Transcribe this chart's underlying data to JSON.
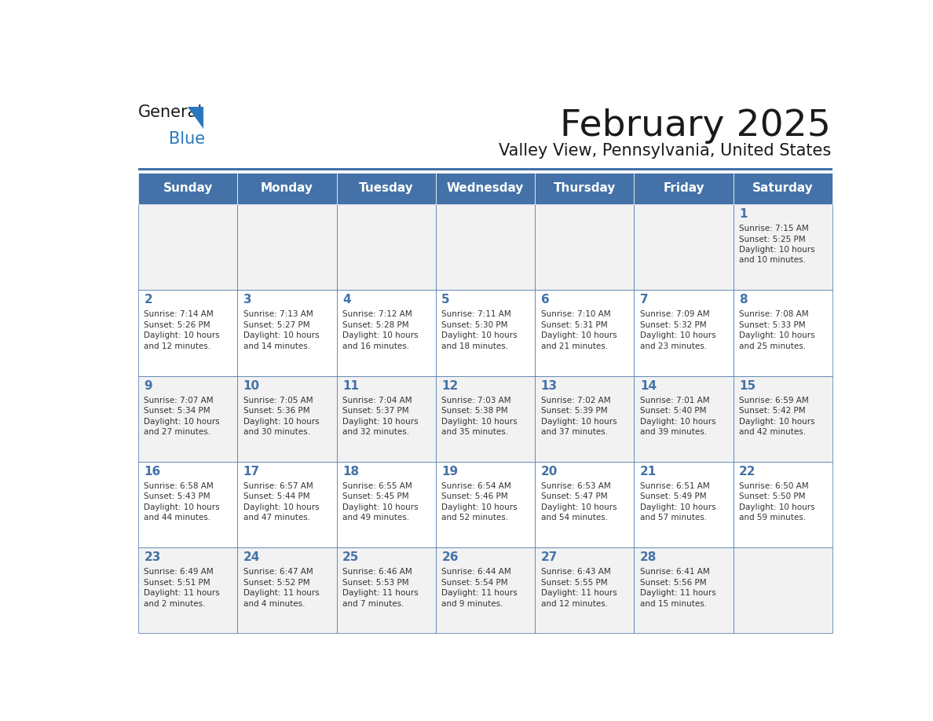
{
  "title": "February 2025",
  "subtitle": "Valley View, Pennsylvania, United States",
  "header_color": "#4472A8",
  "header_text_color": "#FFFFFF",
  "cell_bg_even": "#F2F2F2",
  "cell_bg_odd": "#FFFFFF",
  "border_color": "#4472A8",
  "day_names": [
    "Sunday",
    "Monday",
    "Tuesday",
    "Wednesday",
    "Thursday",
    "Friday",
    "Saturday"
  ],
  "title_color": "#1a1a1a",
  "subtitle_color": "#1a1a1a",
  "number_color": "#4472A8",
  "text_color": "#333333",
  "logo_general_color": "#1a1a1a",
  "logo_blue_color": "#2878BE",
  "days": [
    {
      "date": 1,
      "col": 6,
      "row": 0,
      "sunrise": "7:15 AM",
      "sunset": "5:25 PM",
      "daylight": "10 hours and 10 minutes."
    },
    {
      "date": 2,
      "col": 0,
      "row": 1,
      "sunrise": "7:14 AM",
      "sunset": "5:26 PM",
      "daylight": "10 hours and 12 minutes."
    },
    {
      "date": 3,
      "col": 1,
      "row": 1,
      "sunrise": "7:13 AM",
      "sunset": "5:27 PM",
      "daylight": "10 hours and 14 minutes."
    },
    {
      "date": 4,
      "col": 2,
      "row": 1,
      "sunrise": "7:12 AM",
      "sunset": "5:28 PM",
      "daylight": "10 hours and 16 minutes."
    },
    {
      "date": 5,
      "col": 3,
      "row": 1,
      "sunrise": "7:11 AM",
      "sunset": "5:30 PM",
      "daylight": "10 hours and 18 minutes."
    },
    {
      "date": 6,
      "col": 4,
      "row": 1,
      "sunrise": "7:10 AM",
      "sunset": "5:31 PM",
      "daylight": "10 hours and 21 minutes."
    },
    {
      "date": 7,
      "col": 5,
      "row": 1,
      "sunrise": "7:09 AM",
      "sunset": "5:32 PM",
      "daylight": "10 hours and 23 minutes."
    },
    {
      "date": 8,
      "col": 6,
      "row": 1,
      "sunrise": "7:08 AM",
      "sunset": "5:33 PM",
      "daylight": "10 hours and 25 minutes."
    },
    {
      "date": 9,
      "col": 0,
      "row": 2,
      "sunrise": "7:07 AM",
      "sunset": "5:34 PM",
      "daylight": "10 hours and 27 minutes."
    },
    {
      "date": 10,
      "col": 1,
      "row": 2,
      "sunrise": "7:05 AM",
      "sunset": "5:36 PM",
      "daylight": "10 hours and 30 minutes."
    },
    {
      "date": 11,
      "col": 2,
      "row": 2,
      "sunrise": "7:04 AM",
      "sunset": "5:37 PM",
      "daylight": "10 hours and 32 minutes."
    },
    {
      "date": 12,
      "col": 3,
      "row": 2,
      "sunrise": "7:03 AM",
      "sunset": "5:38 PM",
      "daylight": "10 hours and 35 minutes."
    },
    {
      "date": 13,
      "col": 4,
      "row": 2,
      "sunrise": "7:02 AM",
      "sunset": "5:39 PM",
      "daylight": "10 hours and 37 minutes."
    },
    {
      "date": 14,
      "col": 5,
      "row": 2,
      "sunrise": "7:01 AM",
      "sunset": "5:40 PM",
      "daylight": "10 hours and 39 minutes."
    },
    {
      "date": 15,
      "col": 6,
      "row": 2,
      "sunrise": "6:59 AM",
      "sunset": "5:42 PM",
      "daylight": "10 hours and 42 minutes."
    },
    {
      "date": 16,
      "col": 0,
      "row": 3,
      "sunrise": "6:58 AM",
      "sunset": "5:43 PM",
      "daylight": "10 hours and 44 minutes."
    },
    {
      "date": 17,
      "col": 1,
      "row": 3,
      "sunrise": "6:57 AM",
      "sunset": "5:44 PM",
      "daylight": "10 hours and 47 minutes."
    },
    {
      "date": 18,
      "col": 2,
      "row": 3,
      "sunrise": "6:55 AM",
      "sunset": "5:45 PM",
      "daylight": "10 hours and 49 minutes."
    },
    {
      "date": 19,
      "col": 3,
      "row": 3,
      "sunrise": "6:54 AM",
      "sunset": "5:46 PM",
      "daylight": "10 hours and 52 minutes."
    },
    {
      "date": 20,
      "col": 4,
      "row": 3,
      "sunrise": "6:53 AM",
      "sunset": "5:47 PM",
      "daylight": "10 hours and 54 minutes."
    },
    {
      "date": 21,
      "col": 5,
      "row": 3,
      "sunrise": "6:51 AM",
      "sunset": "5:49 PM",
      "daylight": "10 hours and 57 minutes."
    },
    {
      "date": 22,
      "col": 6,
      "row": 3,
      "sunrise": "6:50 AM",
      "sunset": "5:50 PM",
      "daylight": "10 hours and 59 minutes."
    },
    {
      "date": 23,
      "col": 0,
      "row": 4,
      "sunrise": "6:49 AM",
      "sunset": "5:51 PM",
      "daylight": "11 hours and 2 minutes."
    },
    {
      "date": 24,
      "col": 1,
      "row": 4,
      "sunrise": "6:47 AM",
      "sunset": "5:52 PM",
      "daylight": "11 hours and 4 minutes."
    },
    {
      "date": 25,
      "col": 2,
      "row": 4,
      "sunrise": "6:46 AM",
      "sunset": "5:53 PM",
      "daylight": "11 hours and 7 minutes."
    },
    {
      "date": 26,
      "col": 3,
      "row": 4,
      "sunrise": "6:44 AM",
      "sunset": "5:54 PM",
      "daylight": "11 hours and 9 minutes."
    },
    {
      "date": 27,
      "col": 4,
      "row": 4,
      "sunrise": "6:43 AM",
      "sunset": "5:55 PM",
      "daylight": "11 hours and 12 minutes."
    },
    {
      "date": 28,
      "col": 5,
      "row": 4,
      "sunrise": "6:41 AM",
      "sunset": "5:56 PM",
      "daylight": "11 hours and 15 minutes."
    }
  ]
}
